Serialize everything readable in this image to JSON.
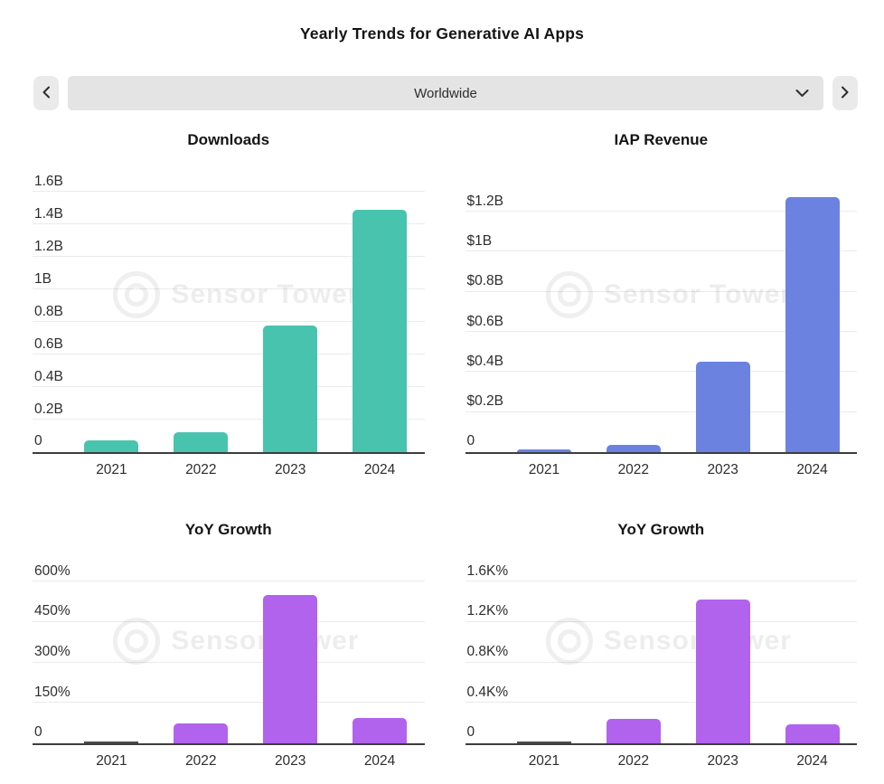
{
  "header": {
    "title": "Yearly Trends for Generative AI Apps"
  },
  "selector": {
    "selected_region": "Worldwide",
    "prev_icon": "chevron-left",
    "next_icon": "chevron-right",
    "dropdown_icon": "chevron-down"
  },
  "watermark": {
    "text": "Sensor Tower",
    "logo_icon": "sensor-tower-logo"
  },
  "colors": {
    "downloads_bar": "#48c4ae",
    "revenue_bar": "#6c82e0",
    "growth_bar": "#b163ee",
    "zero_bar": "#4d4d4d",
    "axis": "#3d3d3d",
    "gridline": "#eaeaea"
  },
  "chart_data": [
    {
      "type": "bar",
      "title": "Downloads",
      "categories": [
        "2021",
        "2022",
        "2023",
        "2024"
      ],
      "values": [
        0.07,
        0.12,
        0.78,
        1.49
      ],
      "unit": "billions of downloads",
      "bar_color": "#48c4ae",
      "ylim": [
        0,
        1.6
      ],
      "yticks": [
        0,
        0.2,
        0.4,
        0.6,
        0.8,
        1.0,
        1.2,
        1.4,
        1.6
      ],
      "ytick_labels": [
        "0",
        "0.2B",
        "0.4B",
        "0.6B",
        "0.8B",
        "1B",
        "1.2B",
        "1.4B",
        "1.6B"
      ],
      "grid": true,
      "legend": "none"
    },
    {
      "type": "bar",
      "title": "IAP Revenue",
      "categories": [
        "2021",
        "2022",
        "2023",
        "2024"
      ],
      "values": [
        0.015,
        0.035,
        0.45,
        1.27
      ],
      "unit": "billions of dollars",
      "bar_color": "#6c82e0",
      "ylim": [
        0,
        1.2
      ],
      "yticks": [
        0,
        0.2,
        0.4,
        0.6,
        0.8,
        1.0,
        1.2
      ],
      "ytick_labels": [
        "0",
        "$0.2B",
        "$0.4B",
        "$0.6B",
        "$0.8B",
        "$1B",
        "$1.2B"
      ],
      "grid": true,
      "legend": "none"
    },
    {
      "type": "bar",
      "title": "YoY Growth",
      "categories": [
        "2021",
        "2022",
        "2023",
        "2024"
      ],
      "values": [
        0,
        75,
        550,
        95
      ],
      "unit": "percent (downloads growth)",
      "bar_color": "#b163ee",
      "ylim": [
        0,
        600
      ],
      "yticks": [
        0,
        150,
        300,
        450,
        600
      ],
      "ytick_labels": [
        "0",
        "150%",
        "300%",
        "450%",
        "600%"
      ],
      "grid": true,
      "legend": "none"
    },
    {
      "type": "bar",
      "title": "YoY Growth",
      "categories": [
        "2021",
        "2022",
        "2023",
        "2024"
      ],
      "values": [
        0,
        240,
        1420,
        190
      ],
      "unit": "percent (revenue growth)",
      "bar_color": "#b163ee",
      "ylim": [
        0,
        1600
      ],
      "yticks": [
        0,
        400,
        800,
        1200,
        1600
      ],
      "ytick_labels": [
        "0",
        "0.4K%",
        "0.8K%",
        "1.2K%",
        "1.6K%"
      ],
      "grid": true,
      "legend": "none"
    }
  ]
}
